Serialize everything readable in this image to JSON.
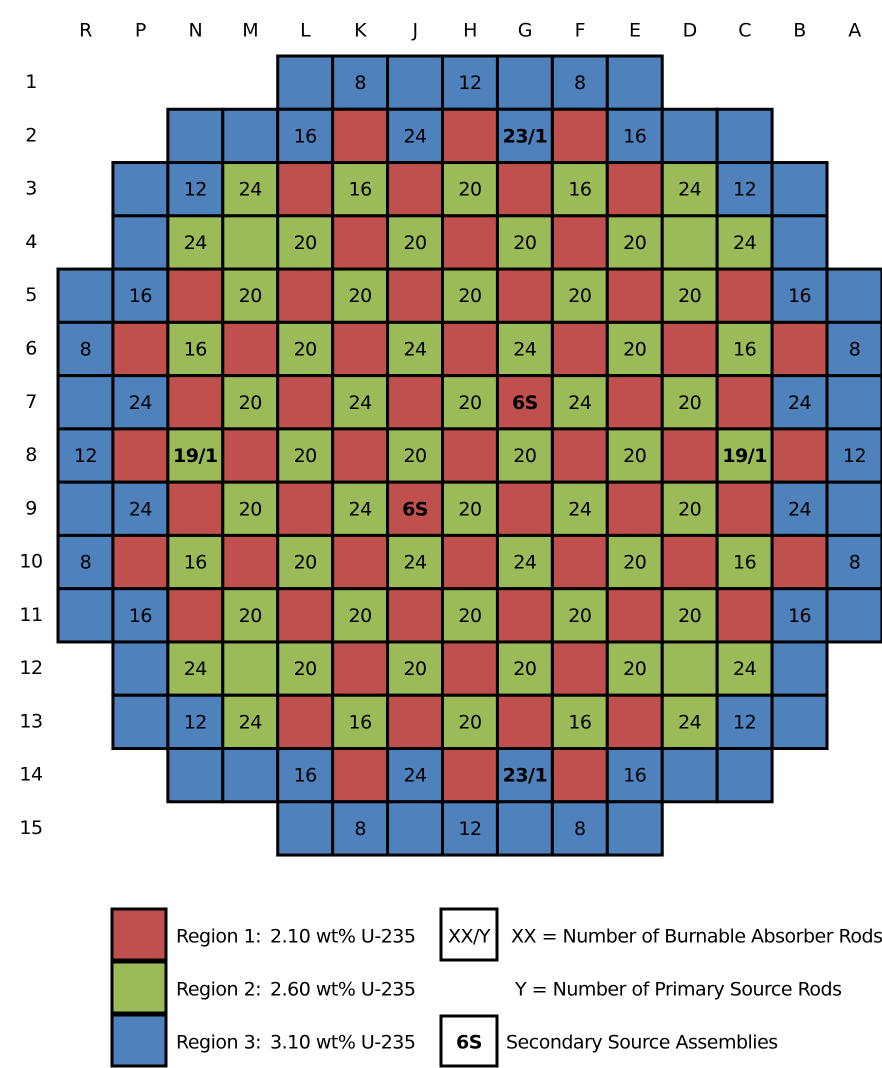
{
  "columns": [
    "R",
    "P",
    "N",
    "M",
    "L",
    "K",
    "J",
    "H",
    "G",
    "F",
    "E",
    "D",
    "C",
    "B",
    "A"
  ],
  "rows": [
    {
      "label": "1",
      "cells": [
        null,
        null,
        null,
        null,
        {
          "region": 3
        },
        {
          "region": 3,
          "label": "8"
        },
        {
          "region": 3
        },
        {
          "region": 3,
          "label": "12"
        },
        {
          "region": 3
        },
        {
          "region": 3,
          "label": "8"
        },
        {
          "region": 3
        },
        null,
        null,
        null,
        null
      ]
    },
    {
      "label": "2",
      "cells": [
        null,
        null,
        {
          "region": 3
        },
        {
          "region": 3
        },
        {
          "region": 3,
          "label": "16"
        },
        {
          "region": 1
        },
        {
          "region": 3,
          "label": "24"
        },
        {
          "region": 1
        },
        {
          "region": 3,
          "label": "23/1",
          "bold": true
        },
        {
          "region": 1
        },
        {
          "region": 3,
          "label": "16"
        },
        {
          "region": 3
        },
        {
          "region": 3
        },
        null,
        null
      ]
    },
    {
      "label": "3",
      "cells": [
        null,
        {
          "region": 3
        },
        {
          "region": 3,
          "label": "12"
        },
        {
          "region": 2,
          "label": "24"
        },
        {
          "region": 1
        },
        {
          "region": 2,
          "label": "16"
        },
        {
          "region": 1
        },
        {
          "region": 2,
          "label": "20"
        },
        {
          "region": 1
        },
        {
          "region": 2,
          "label": "16"
        },
        {
          "region": 1
        },
        {
          "region": 2,
          "label": "24"
        },
        {
          "region": 3,
          "label": "12"
        },
        {
          "region": 3
        },
        null
      ]
    },
    {
      "label": "4",
      "cells": [
        null,
        {
          "region": 3
        },
        {
          "region": 2,
          "label": "24"
        },
        {
          "region": 2
        },
        {
          "region": 2,
          "label": "20"
        },
        {
          "region": 1
        },
        {
          "region": 2,
          "label": "20"
        },
        {
          "region": 1
        },
        {
          "region": 2,
          "label": "20"
        },
        {
          "region": 1
        },
        {
          "region": 2,
          "label": "20"
        },
        {
          "region": 2
        },
        {
          "region": 2,
          "label": "24"
        },
        {
          "region": 3
        },
        null
      ]
    },
    {
      "label": "5",
      "cells": [
        {
          "region": 3
        },
        {
          "region": 3,
          "label": "16"
        },
        {
          "region": 1
        },
        {
          "region": 2,
          "label": "20"
        },
        {
          "region": 1
        },
        {
          "region": 2,
          "label": "20"
        },
        {
          "region": 1
        },
        {
          "region": 2,
          "label": "20"
        },
        {
          "region": 1
        },
        {
          "region": 2,
          "label": "20"
        },
        {
          "region": 1
        },
        {
          "region": 2,
          "label": "20"
        },
        {
          "region": 1
        },
        {
          "region": 3,
          "label": "16"
        },
        {
          "region": 3
        }
      ]
    },
    {
      "label": "6",
      "cells": [
        {
          "region": 3,
          "label": "8"
        },
        {
          "region": 1
        },
        {
          "region": 2,
          "label": "16"
        },
        {
          "region": 1
        },
        {
          "region": 2,
          "label": "20"
        },
        {
          "region": 1
        },
        {
          "region": 2,
          "label": "24"
        },
        {
          "region": 1
        },
        {
          "region": 2,
          "label": "24"
        },
        {
          "region": 1
        },
        {
          "region": 2,
          "label": "20"
        },
        {
          "region": 1
        },
        {
          "region": 2,
          "label": "16"
        },
        {
          "region": 1
        },
        {
          "region": 3,
          "label": "8"
        }
      ]
    },
    {
      "label": "7",
      "cells": [
        {
          "region": 3
        },
        {
          "region": 3,
          "label": "24"
        },
        {
          "region": 1
        },
        {
          "region": 2,
          "label": "20"
        },
        {
          "region": 1
        },
        {
          "region": 2,
          "label": "24"
        },
        {
          "region": 1
        },
        {
          "region": 2,
          "label": "20"
        },
        {
          "region": 1,
          "label": "6S",
          "bold": true
        },
        {
          "region": 2,
          "label": "24"
        },
        {
          "region": 1
        },
        {
          "region": 2,
          "label": "20"
        },
        {
          "region": 1
        },
        {
          "region": 3,
          "label": "24"
        },
        {
          "region": 3
        }
      ]
    },
    {
      "label": "8",
      "cells": [
        {
          "region": 3,
          "label": "12"
        },
        {
          "region": 1
        },
        {
          "region": 2,
          "label": "19/1",
          "bold": true
        },
        {
          "region": 1
        },
        {
          "region": 2,
          "label": "20"
        },
        {
          "region": 1
        },
        {
          "region": 2,
          "label": "20"
        },
        {
          "region": 1
        },
        {
          "region": 2,
          "label": "20"
        },
        {
          "region": 1
        },
        {
          "region": 2,
          "label": "20"
        },
        {
          "region": 1
        },
        {
          "region": 2,
          "label": "19/1",
          "bold": true
        },
        {
          "region": 1
        },
        {
          "region": 3,
          "label": "12"
        }
      ]
    },
    {
      "label": "9",
      "cells": [
        {
          "region": 3
        },
        {
          "region": 3,
          "label": "24"
        },
        {
          "region": 1
        },
        {
          "region": 2,
          "label": "20"
        },
        {
          "region": 1
        },
        {
          "region": 2,
          "label": "24"
        },
        {
          "region": 1,
          "label": "6S",
          "bold": true
        },
        {
          "region": 2,
          "label": "20"
        },
        {
          "region": 1
        },
        {
          "region": 2,
          "label": "24"
        },
        {
          "region": 1
        },
        {
          "region": 2,
          "label": "20"
        },
        {
          "region": 1
        },
        {
          "region": 3,
          "label": "24"
        },
        {
          "region": 3
        }
      ]
    },
    {
      "label": "10",
      "cells": [
        {
          "region": 3,
          "label": "8"
        },
        {
          "region": 1
        },
        {
          "region": 2,
          "label": "16"
        },
        {
          "region": 1
        },
        {
          "region": 2,
          "label": "20"
        },
        {
          "region": 1
        },
        {
          "region": 2,
          "label": "24"
        },
        {
          "region": 1
        },
        {
          "region": 2,
          "label": "24"
        },
        {
          "region": 1
        },
        {
          "region": 2,
          "label": "20"
        },
        {
          "region": 1
        },
        {
          "region": 2,
          "label": "16"
        },
        {
          "region": 1
        },
        {
          "region": 3,
          "label": "8"
        }
      ]
    },
    {
      "label": "11",
      "cells": [
        {
          "region": 3
        },
        {
          "region": 3,
          "label": "16"
        },
        {
          "region": 1
        },
        {
          "region": 2,
          "label": "20"
        },
        {
          "region": 1
        },
        {
          "region": 2,
          "label": "20"
        },
        {
          "region": 1
        },
        {
          "region": 2,
          "label": "20"
        },
        {
          "region": 1
        },
        {
          "region": 2,
          "label": "20"
        },
        {
          "region": 1
        },
        {
          "region": 2,
          "label": "20"
        },
        {
          "region": 1
        },
        {
          "region": 3,
          "label": "16"
        },
        {
          "region": 3
        }
      ]
    },
    {
      "label": "12",
      "cells": [
        null,
        {
          "region": 3
        },
        {
          "region": 2,
          "label": "24"
        },
        {
          "region": 2
        },
        {
          "region": 2,
          "label": "20"
        },
        {
          "region": 1
        },
        {
          "region": 2,
          "label": "20"
        },
        {
          "region": 1
        },
        {
          "region": 2,
          "label": "20"
        },
        {
          "region": 1
        },
        {
          "region": 2,
          "label": "20"
        },
        {
          "region": 2
        },
        {
          "region": 2,
          "label": "24"
        },
        {
          "region": 3
        },
        null
      ]
    },
    {
      "label": "13",
      "cells": [
        null,
        {
          "region": 3
        },
        {
          "region": 3,
          "label": "12"
        },
        {
          "region": 2,
          "label": "24"
        },
        {
          "region": 1
        },
        {
          "region": 2,
          "label": "16"
        },
        {
          "region": 1
        },
        {
          "region": 2,
          "label": "20"
        },
        {
          "region": 1
        },
        {
          "region": 2,
          "label": "16"
        },
        {
          "region": 1
        },
        {
          "region": 2,
          "label": "24"
        },
        {
          "region": 3,
          "label": "12"
        },
        {
          "region": 3
        },
        null
      ]
    },
    {
      "label": "14",
      "cells": [
        null,
        null,
        {
          "region": 3
        },
        {
          "region": 3
        },
        {
          "region": 3,
          "label": "16"
        },
        {
          "region": 1
        },
        {
          "region": 3,
          "label": "24"
        },
        {
          "region": 1
        },
        {
          "region": 3,
          "label": "23/1",
          "bold": true
        },
        {
          "region": 1
        },
        {
          "region": 3,
          "label": "16"
        },
        {
          "region": 3
        },
        {
          "region": 3
        },
        null,
        null
      ]
    },
    {
      "label": "15",
      "cells": [
        null,
        null,
        null,
        null,
        {
          "region": 3
        },
        {
          "region": 3,
          "label": "8"
        },
        {
          "region": 3
        },
        {
          "region": 3,
          "label": "12"
        },
        {
          "region": 3
        },
        {
          "region": 3,
          "label": "8"
        },
        {
          "region": 3
        },
        null,
        null,
        null,
        null
      ]
    }
  ],
  "legend": [
    {
      "name": "Region 1:",
      "enrichment": "2.10 wt% U-235",
      "color": "#c0504d"
    },
    {
      "name": "Region 2:",
      "enrichment": "2.60 wt% U-235",
      "color": "#9bbb59"
    },
    {
      "name": "Region 3:",
      "enrichment": "3.10 wt% U-235",
      "color": "#4f81bd"
    }
  ],
  "key": {
    "box1": "XX/Y",
    "line1": "XX = Number of Burnable Absorber Rods",
    "line2": "Y = Number of Primary Source Rods",
    "box2": "6S",
    "line3": "Secondary Source Assemblies"
  }
}
